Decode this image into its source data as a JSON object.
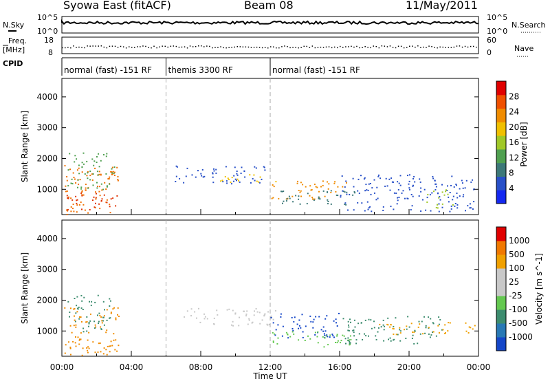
{
  "header": {
    "station": "Syowa East (fitACF)",
    "beam": "Beam 08",
    "date": "11/May/2011"
  },
  "top_panels": {
    "nsky_label": "N.Sky",
    "nsky_ticks": [
      "10^5",
      "10^0"
    ],
    "nsearch_label": "N.Search",
    "nsearch_ticks": [
      "10^5",
      "10^0"
    ],
    "freq_label_1": "Freq.",
    "freq_label_2": "[MHz]",
    "freq_ticks": [
      "18",
      "8"
    ],
    "nave_label": "Nave",
    "nave_ticks": [
      "60",
      "0"
    ],
    "cpid_label": "CPID",
    "cpid_segments": [
      {
        "start": 0,
        "end": 6,
        "label": "normal (fast) -151 RF"
      },
      {
        "start": 6,
        "end": 12,
        "label": "themis 3300 RF"
      },
      {
        "start": 12,
        "end": 24,
        "label": "normal (fast) -151 RF"
      }
    ]
  },
  "chart_data": [
    {
      "type": "heatmap",
      "title": "Power",
      "ylabel": "Slant Range [km]",
      "xlabel": "Time UT",
      "xlim": [
        0,
        24
      ],
      "ylim": [
        180,
        4600
      ],
      "y_ticks": [
        1000,
        2000,
        3000,
        4000
      ],
      "colorbar_label": "Power [dB]",
      "colorbar_ticks": [
        "28",
        "24",
        "20",
        "16",
        "12",
        "8",
        "4"
      ],
      "colorbar_colors": [
        "#1428f0",
        "#2850c8",
        "#3c7878",
        "#50a050",
        "#a0c828",
        "#f0c000",
        "#f08c00",
        "#f05000",
        "#e00000"
      ],
      "echo_regions": [
        {
          "t0": 0.1,
          "t1": 3.3,
          "r0": 200,
          "r1": 1800,
          "color": "#f07000"
        },
        {
          "t0": 0.2,
          "t1": 3.2,
          "r0": 300,
          "r1": 900,
          "color": "#e03000"
        },
        {
          "t0": 0.3,
          "t1": 3.0,
          "r0": 1000,
          "r1": 2200,
          "color": "#50a050"
        },
        {
          "t0": 6.5,
          "t1": 11.8,
          "r0": 1200,
          "r1": 1800,
          "color": "#2850c8"
        },
        {
          "t0": 9.0,
          "t1": 12.5,
          "r0": 1250,
          "r1": 1500,
          "color": "#f0c000"
        },
        {
          "t0": 12.0,
          "t1": 16.5,
          "r0": 700,
          "r1": 1300,
          "color": "#f08c00"
        },
        {
          "t0": 12.5,
          "t1": 17.0,
          "r0": 500,
          "r1": 1000,
          "color": "#3c7878"
        },
        {
          "t0": 16.0,
          "t1": 23.8,
          "r0": 300,
          "r1": 1500,
          "color": "#2850c8"
        },
        {
          "t0": 21.0,
          "t1": 22.5,
          "r0": 400,
          "r1": 1000,
          "color": "#a0c828"
        }
      ]
    },
    {
      "type": "heatmap",
      "title": "Velocity",
      "ylabel": "Slant Range [km]",
      "xlabel": "Time UT",
      "xlim": [
        0,
        24
      ],
      "ylim": [
        180,
        4600
      ],
      "y_ticks": [
        1000,
        2000,
        3000,
        4000
      ],
      "x_ticks": [
        "00:00",
        "04:00",
        "08:00",
        "12:00",
        "16:00",
        "20:00",
        "00:00"
      ],
      "colorbar_label": "Velocity [m s^-1]",
      "colorbar_ticks": [
        "1000",
        "500",
        "100",
        "25",
        "-25",
        "-100",
        "-500",
        "-1000"
      ],
      "colorbar_colors": [
        "#1446c8",
        "#2878b4",
        "#3c8c6e",
        "#64c850",
        "#c8c8c8",
        "#c8c8c8",
        "#f0a000",
        "#f07800",
        "#e00000"
      ],
      "echo_regions": [
        {
          "t0": 0.1,
          "t1": 3.3,
          "r0": 200,
          "r1": 1800,
          "color": "#f08c00"
        },
        {
          "t0": 0.3,
          "t1": 2.8,
          "r0": 1000,
          "r1": 2200,
          "color": "#3c8c6e"
        },
        {
          "t0": 7.0,
          "t1": 12.5,
          "r0": 1150,
          "r1": 1750,
          "color": "#c8c8c8"
        },
        {
          "t0": 12.0,
          "t1": 16.0,
          "r0": 800,
          "r1": 1600,
          "color": "#1446c8"
        },
        {
          "t0": 12.0,
          "t1": 17.0,
          "r0": 500,
          "r1": 1000,
          "color": "#64c850"
        },
        {
          "t0": 16.0,
          "t1": 22.0,
          "r0": 600,
          "r1": 1500,
          "color": "#3c8c6e"
        },
        {
          "t0": 18.0,
          "t1": 23.8,
          "r0": 900,
          "r1": 1300,
          "color": "#f0a000"
        }
      ]
    }
  ]
}
